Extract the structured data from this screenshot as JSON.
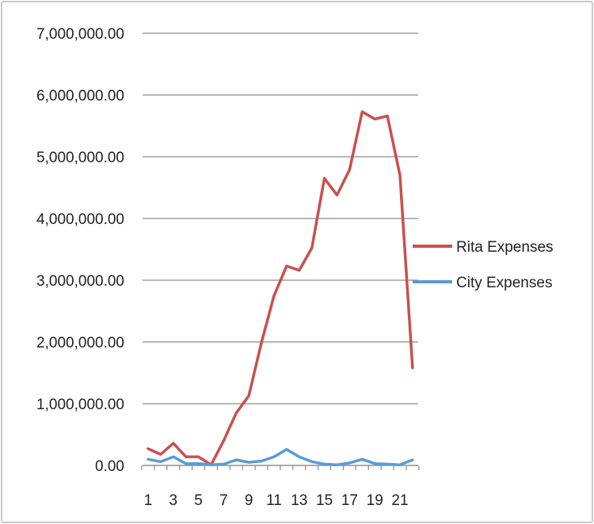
{
  "chart_data": {
    "type": "line",
    "title": "",
    "xlabel": "",
    "ylabel": "",
    "x": [
      1,
      2,
      3,
      4,
      5,
      6,
      7,
      8,
      9,
      10,
      11,
      12,
      13,
      14,
      15,
      16,
      17,
      18,
      19,
      20,
      21,
      22
    ],
    "x_tick_labels": [
      "1",
      "3",
      "5",
      "7",
      "9",
      "11",
      "13",
      "15",
      "17",
      "19",
      "21"
    ],
    "y_tick_labels": [
      "0.00",
      "1,000,000.00",
      "2,000,000.00",
      "3,000,000.00",
      "4,000,000.00",
      "5,000,000.00",
      "6,000,000.00",
      "7,000,000.00"
    ],
    "ylim": [
      0,
      7000000
    ],
    "grid": "horizontal",
    "legend_position": "right",
    "series": [
      {
        "name": "Rita Expenses",
        "color": "#c9504e",
        "values": [
          270000,
          180000,
          360000,
          140000,
          140000,
          10000,
          400000,
          850000,
          1130000,
          1990000,
          2750000,
          3230000,
          3160000,
          3520000,
          4650000,
          4380000,
          4790000,
          5730000,
          5610000,
          5660000,
          4700000,
          1580000
        ]
      },
      {
        "name": "City Expenses",
        "color": "#5b9bd5",
        "values": [
          100000,
          60000,
          140000,
          30000,
          30000,
          10000,
          20000,
          90000,
          50000,
          70000,
          140000,
          260000,
          140000,
          60000,
          20000,
          10000,
          40000,
          100000,
          30000,
          20000,
          10000,
          90000
        ]
      }
    ]
  }
}
